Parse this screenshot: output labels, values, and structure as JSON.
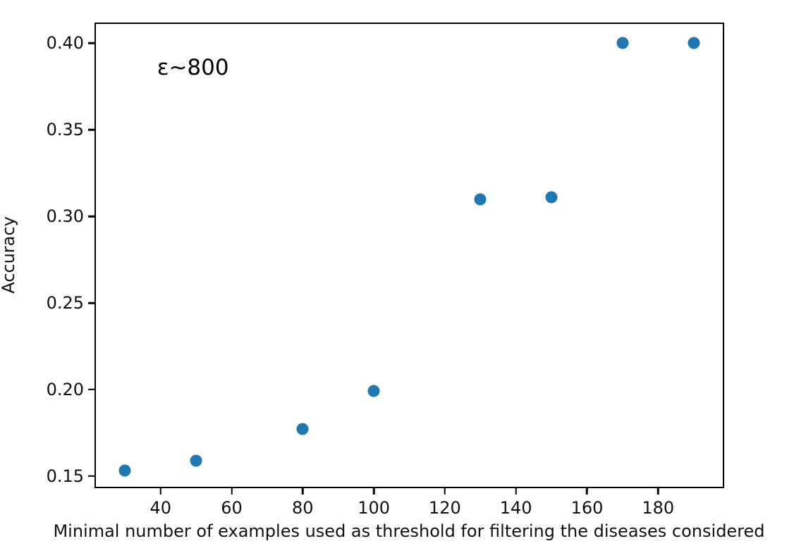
{
  "chart_data": {
    "type": "scatter",
    "title": "",
    "xlabel": "Minimal number of examples used as threshold for filtering the diseases considered",
    "ylabel": "Accuracy",
    "annotation": {
      "text": "ε~800",
      "x": 39,
      "y": 0.386
    },
    "x": [
      30,
      50,
      80,
      100,
      130,
      150,
      170,
      190
    ],
    "y": [
      0.153,
      0.159,
      0.177,
      0.199,
      0.31,
      0.311,
      0.4,
      0.4
    ],
    "xtick_labels": [
      "40",
      "60",
      "80",
      "100",
      "120",
      "140",
      "160",
      "180"
    ],
    "ytick_labels": [
      "0.15",
      "0.20",
      "0.25",
      "0.30",
      "0.35",
      "0.40"
    ],
    "xlim": [
      21.4,
      198.6
    ],
    "ylim": [
      0.143,
      0.412
    ],
    "marker_color": "#1f77b4",
    "grid": false
  }
}
